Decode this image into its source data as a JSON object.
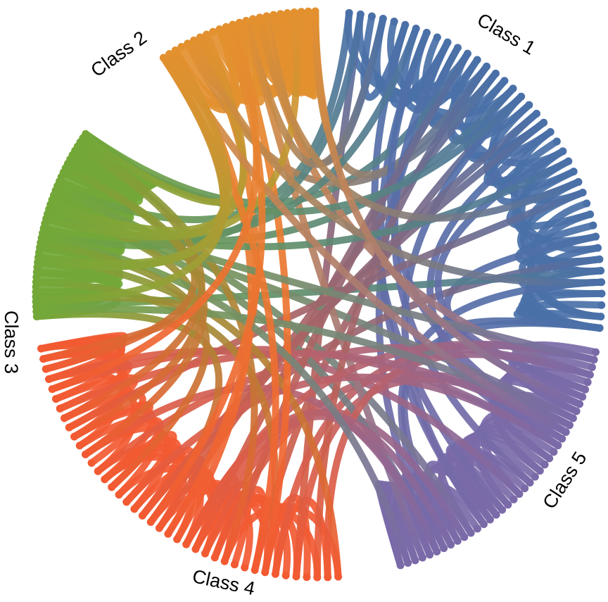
{
  "chart_data": {
    "type": "chord",
    "title": "",
    "groups": [
      {
        "name": "Class 1",
        "color": "#4a70a8",
        "nodes": 40
      },
      {
        "name": "Class 5",
        "color": "#7a6aa8",
        "nodes": 40
      },
      {
        "name": "Class 4",
        "color": "#f25a32",
        "nodes": 40
      },
      {
        "name": "Class 3",
        "color": "#73a838",
        "nodes": 40
      },
      {
        "name": "Class 2",
        "color": "#e3902f",
        "nodes": 24
      }
    ],
    "flow_matrix": [
      [
        22,
        6,
        5,
        4,
        3
      ],
      [
        6,
        22,
        7,
        3,
        2
      ],
      [
        5,
        7,
        20,
        5,
        3
      ],
      [
        4,
        3,
        5,
        24,
        4
      ],
      [
        3,
        2,
        3,
        4,
        12
      ]
    ]
  }
}
